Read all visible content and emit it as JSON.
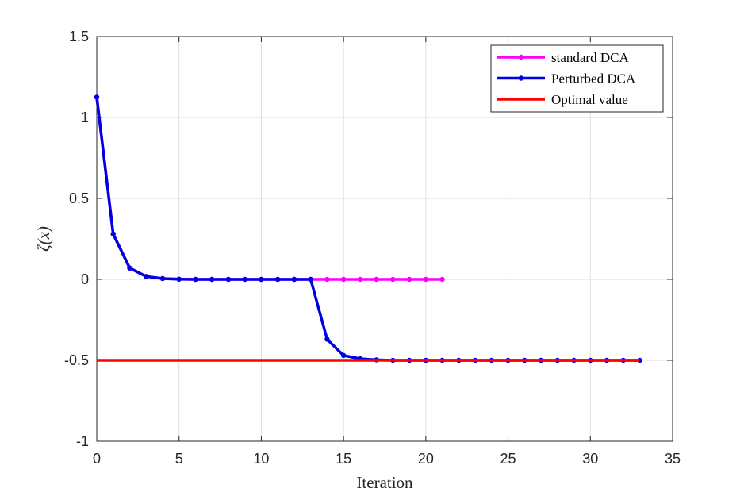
{
  "chart_data": {
    "type": "line",
    "xlabel": "Iteration",
    "ylabel": "ζ(x)",
    "xlim": [
      0,
      35
    ],
    "ylim": [
      -1,
      1.5
    ],
    "xticks": [
      0,
      5,
      10,
      15,
      20,
      25,
      30,
      35
    ],
    "yticks": [
      -1,
      -0.5,
      0,
      0.5,
      1,
      1.5
    ],
    "xtick_labels": [
      "0",
      "5",
      "10",
      "15",
      "20",
      "25",
      "30",
      "35"
    ],
    "ytick_labels": [
      "-1",
      "-0.5",
      "0",
      "0.5",
      "1",
      "1.5"
    ],
    "grid": true,
    "legend_position": "top-right",
    "series": [
      {
        "name": "standard DCA",
        "color": "#ff00ff",
        "marker": true,
        "x": [
          0,
          1,
          2,
          3,
          4,
          5,
          6,
          7,
          8,
          9,
          10,
          11,
          12,
          13,
          14,
          15,
          16,
          17,
          18,
          19,
          20,
          21
        ],
        "y": [
          1.125,
          0.28,
          0.07,
          0.018,
          0.005,
          0.001,
          0,
          0,
          0,
          0,
          0,
          0,
          0,
          0,
          0,
          0,
          0,
          0,
          0,
          0,
          0,
          0
        ]
      },
      {
        "name": "Perturbed DCA",
        "color": "#0000e6",
        "marker": true,
        "x": [
          0,
          1,
          2,
          3,
          4,
          5,
          6,
          7,
          8,
          9,
          10,
          11,
          12,
          13,
          14,
          15,
          16,
          17,
          18,
          19,
          20,
          21,
          22,
          23,
          24,
          25,
          26,
          27,
          28,
          29,
          30,
          31,
          32,
          33
        ],
        "y": [
          1.125,
          0.28,
          0.07,
          0.018,
          0.005,
          0.001,
          0,
          0,
          0,
          0,
          0,
          0,
          0,
          0,
          -0.37,
          -0.47,
          -0.49,
          -0.497,
          -0.5,
          -0.5,
          -0.5,
          -0.5,
          -0.5,
          -0.5,
          -0.5,
          -0.5,
          -0.5,
          -0.5,
          -0.5,
          -0.5,
          -0.5,
          -0.5,
          -0.5,
          -0.5
        ]
      },
      {
        "name": "Optimal value",
        "color": "#ff0000",
        "marker": false,
        "x": [
          0,
          33
        ],
        "y": [
          -0.5,
          -0.5
        ]
      }
    ]
  }
}
